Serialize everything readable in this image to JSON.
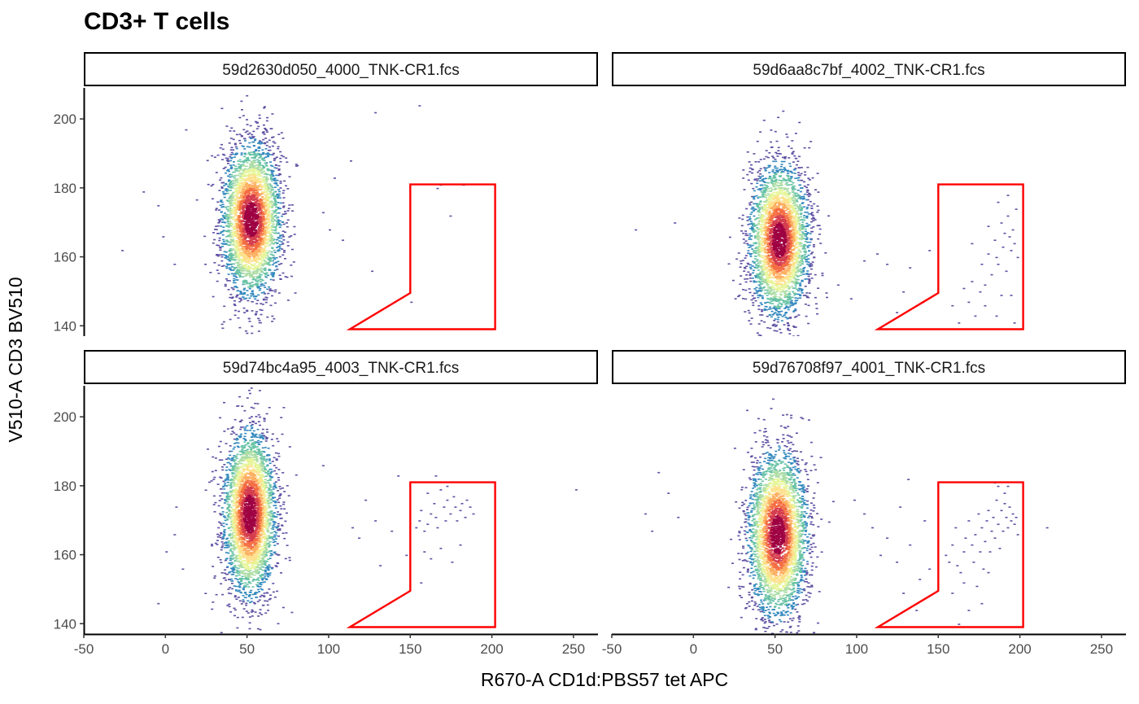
{
  "chart_data": {
    "type": "scatter",
    "title": "CD3+ T cells",
    "xlabel": "R670-A CD1d:PBS57 tet APC",
    "ylabel": "V510-A CD3 BV510",
    "xlim": [
      -50,
      265
    ],
    "ylim": [
      137,
      209
    ],
    "xticks": [
      -50,
      0,
      50,
      100,
      150,
      200,
      250
    ],
    "yticks": [
      140,
      160,
      180,
      200
    ],
    "grid": false,
    "colormap": [
      "#5e4fa2",
      "#3288bd",
      "#66c2a5",
      "#abdda4",
      "#e6f598",
      "#fee08b",
      "#fdae61",
      "#f46d43",
      "#d53e4f",
      "#9e0142"
    ],
    "gate_color": "#ff0000",
    "gate_polygon": [
      [
        113,
        139
      ],
      [
        150,
        149.5
      ],
      [
        150,
        181
      ],
      [
        202,
        181
      ],
      [
        202,
        139
      ]
    ],
    "panels": [
      {
        "label": "59d2630d050_4000_TNK-CR1.fcs",
        "main_population": {
          "center": [
            52,
            171
          ],
          "sd": [
            9,
            11
          ],
          "count": 3400
        },
        "outliers": [
          [
            -27,
            162
          ],
          [
            -14,
            179
          ],
          [
            -5,
            175
          ],
          [
            -2,
            166
          ],
          [
            5,
            158
          ],
          [
            12,
            197
          ],
          [
            96,
            173
          ],
          [
            100,
            168
          ],
          [
            103,
            183
          ],
          [
            108,
            165
          ],
          [
            113,
            188
          ],
          [
            128,
            202
          ],
          [
            126,
            156
          ],
          [
            150,
            147
          ],
          [
            155,
            204
          ],
          [
            166,
            180
          ],
          [
            168,
            181
          ],
          [
            174,
            172
          ],
          [
            182,
            181
          ]
        ],
        "gate_events": []
      },
      {
        "label": "59d6aa8c7bf_4002_TNK-CR1.fcs",
        "main_population": {
          "center": [
            52,
            165
          ],
          "sd": [
            9,
            11
          ],
          "count": 3300
        },
        "outliers": [
          [
            -36,
            168
          ],
          [
            -12,
            170
          ],
          [
            88,
            152
          ],
          [
            96,
            148
          ],
          [
            104,
            159
          ],
          [
            112,
            161
          ],
          [
            118,
            158
          ],
          [
            124,
            144
          ],
          [
            128,
            150
          ],
          [
            132,
            157
          ],
          [
            140,
            147
          ],
          [
            144,
            162
          ]
        ],
        "gate_events": [
          [
            158,
            146
          ],
          [
            162,
            141
          ],
          [
            165,
            151
          ],
          [
            168,
            147
          ],
          [
            170,
            153
          ],
          [
            172,
            143
          ],
          [
            175,
            150
          ],
          [
            176,
            158
          ],
          [
            178,
            152
          ],
          [
            180,
            161
          ],
          [
            182,
            155
          ],
          [
            184,
            165
          ],
          [
            185,
            160
          ],
          [
            186,
            158
          ],
          [
            188,
            170
          ],
          [
            189,
            163
          ],
          [
            190,
            167
          ],
          [
            191,
            156
          ],
          [
            192,
            172
          ],
          [
            193,
            166
          ],
          [
            194,
            162
          ],
          [
            195,
            168
          ],
          [
            196,
            164
          ],
          [
            197,
            174
          ],
          [
            198,
            160
          ],
          [
            185,
            143
          ],
          [
            178,
            146
          ],
          [
            188,
            149
          ],
          [
            196,
            141
          ],
          [
            170,
            164
          ],
          [
            180,
            169
          ],
          [
            186,
            176
          ],
          [
            192,
            178
          ],
          [
            194,
            149
          ]
        ]
      },
      {
        "label": "59d74bc4a95_4003_TNK-CR1.fcs",
        "main_population": {
          "center": [
            51,
            172
          ],
          "sd": [
            8,
            12
          ],
          "count": 3400
        },
        "outliers": [
          [
            -5,
            146
          ],
          [
            0,
            161
          ],
          [
            5,
            166
          ],
          [
            6,
            174
          ],
          [
            10,
            156
          ],
          [
            96,
            186
          ],
          [
            114,
            168
          ],
          [
            118,
            165
          ],
          [
            122,
            176
          ],
          [
            128,
            170
          ],
          [
            131,
            157
          ],
          [
            138,
            167
          ],
          [
            142,
            183
          ],
          [
            147,
            160
          ],
          [
            251,
            179
          ]
        ],
        "gate_events": [
          [
            153,
            168
          ],
          [
            155,
            170
          ],
          [
            156,
            173
          ],
          [
            158,
            167
          ],
          [
            160,
            169
          ],
          [
            160,
            178
          ],
          [
            162,
            172
          ],
          [
            164,
            175
          ],
          [
            165,
            171
          ],
          [
            166,
            168
          ],
          [
            168,
            179
          ],
          [
            170,
            174
          ],
          [
            171,
            170
          ],
          [
            172,
            176
          ],
          [
            174,
            172
          ],
          [
            176,
            177
          ],
          [
            177,
            174
          ],
          [
            178,
            170
          ],
          [
            180,
            173
          ],
          [
            181,
            175
          ],
          [
            183,
            171
          ],
          [
            184,
            176
          ],
          [
            186,
            174
          ],
          [
            188,
            172
          ],
          [
            158,
            161
          ],
          [
            162,
            159
          ],
          [
            168,
            162
          ],
          [
            175,
            158
          ],
          [
            180,
            163
          ],
          [
            172,
            180
          ],
          [
            165,
            183
          ],
          [
            156,
            152
          ]
        ]
      },
      {
        "label": "59d76708f97_4001_TNK-CR1.fcs",
        "main_population": {
          "center": [
            51,
            166
          ],
          "sd": [
            9,
            12
          ],
          "count": 3400
        },
        "outliers": [
          [
            -30,
            172
          ],
          [
            -26,
            167
          ],
          [
            -22,
            184
          ],
          [
            -16,
            178
          ],
          [
            -10,
            171
          ],
          [
            98,
            176
          ],
          [
            104,
            172
          ],
          [
            109,
            168
          ],
          [
            114,
            160
          ],
          [
            118,
            165
          ],
          [
            124,
            158
          ],
          [
            128,
            149
          ],
          [
            132,
            163
          ],
          [
            136,
            144
          ],
          [
            138,
            153
          ],
          [
            141,
            170
          ],
          [
            144,
            156
          ],
          [
            131,
            182
          ],
          [
            126,
            174
          ],
          [
            216,
            168
          ]
        ],
        "gate_events": [
          [
            154,
            160
          ],
          [
            156,
            158
          ],
          [
            158,
            163
          ],
          [
            160,
            168
          ],
          [
            161,
            157
          ],
          [
            163,
            155
          ],
          [
            165,
            161
          ],
          [
            166,
            165
          ],
          [
            168,
            170
          ],
          [
            170,
            163
          ],
          [
            171,
            158
          ],
          [
            172,
            166
          ],
          [
            174,
            172
          ],
          [
            175,
            161
          ],
          [
            176,
            168
          ],
          [
            177,
            156
          ],
          [
            178,
            164
          ],
          [
            179,
            170
          ],
          [
            180,
            173
          ],
          [
            181,
            161
          ],
          [
            182,
            167
          ],
          [
            183,
            171
          ],
          [
            184,
            165
          ],
          [
            185,
            176
          ],
          [
            186,
            169
          ],
          [
            187,
            162
          ],
          [
            188,
            173
          ],
          [
            189,
            167
          ],
          [
            190,
            175
          ],
          [
            191,
            171
          ],
          [
            192,
            168
          ],
          [
            193,
            174
          ],
          [
            194,
            170
          ],
          [
            195,
            172
          ],
          [
            196,
            169
          ],
          [
            197,
            171
          ],
          [
            198,
            166
          ],
          [
            186,
            180
          ],
          [
            190,
            178
          ],
          [
            180,
            155
          ],
          [
            173,
            151
          ],
          [
            165,
            152
          ],
          [
            158,
            149
          ],
          [
            168,
            144
          ],
          [
            176,
            146
          ],
          [
            184,
            181
          ],
          [
            192,
            180
          ],
          [
            162,
            140
          ]
        ]
      }
    ]
  }
}
